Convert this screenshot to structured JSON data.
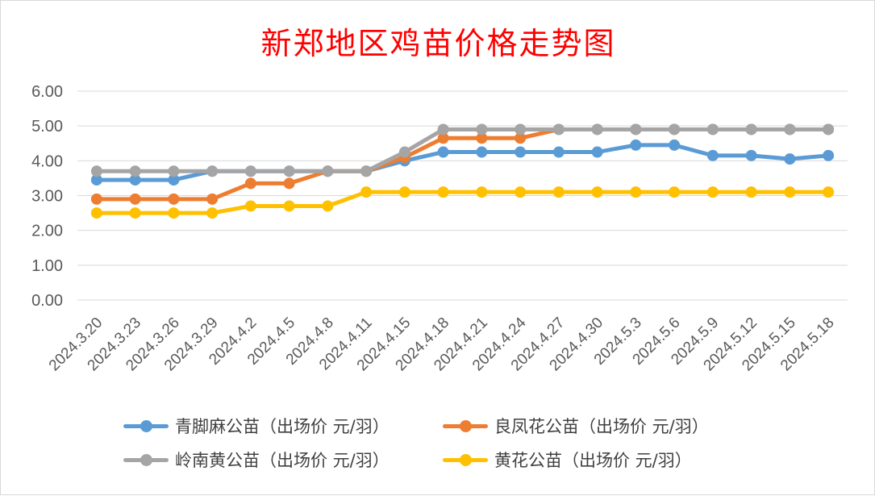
{
  "chart_data": {
    "type": "line",
    "title": "新郑地区鸡苗价格走势图",
    "categories": [
      "2024.3.20",
      "2024.3.23",
      "2024.3.26",
      "2024.3.29",
      "2024.4.2",
      "2024.4.5",
      "2024.4.8",
      "2024.4.11",
      "2024.4.15",
      "2024.4.18",
      "2024.4.21",
      "2024.4.24",
      "2024.4.27",
      "2024.4.30",
      "2024.5.3",
      "2024.5.6",
      "2024.5.9",
      "2024.5.12",
      "2024.5.15",
      "2024.5.18"
    ],
    "ylim": [
      0,
      6
    ],
    "yticks": [
      "0.00",
      "1.00",
      "2.00",
      "3.00",
      "4.00",
      "5.00",
      "6.00"
    ],
    "grid": true,
    "legend_position": "bottom",
    "series": [
      {
        "name": "青脚麻公苗（出场价 元/羽）",
        "color": "#5b9bd5",
        "values": [
          3.45,
          3.45,
          3.45,
          3.7,
          3.7,
          3.7,
          3.7,
          3.7,
          4.0,
          4.25,
          4.25,
          4.25,
          4.25,
          4.25,
          4.45,
          4.45,
          4.15,
          4.15,
          4.05,
          4.15
        ]
      },
      {
        "name": "良凤花公苗（出场价 元/羽）",
        "color": "#ed7d31",
        "values": [
          2.9,
          2.9,
          2.9,
          2.9,
          3.35,
          3.35,
          3.7,
          3.7,
          4.1,
          4.65,
          4.65,
          4.65,
          4.9,
          4.9,
          4.9,
          4.9,
          4.9,
          4.9,
          4.9,
          4.9
        ]
      },
      {
        "name": "岭南黄公苗（出场价 元/羽）",
        "color": "#a5a5a5",
        "values": [
          3.7,
          3.7,
          3.7,
          3.7,
          3.7,
          3.7,
          3.7,
          3.7,
          4.25,
          4.9,
          4.9,
          4.9,
          4.9,
          4.9,
          4.9,
          4.9,
          4.9,
          4.9,
          4.9,
          4.9
        ]
      },
      {
        "name": "黄花公苗（出场价 元/羽）",
        "color": "#ffc000",
        "values": [
          2.5,
          2.5,
          2.5,
          2.5,
          2.7,
          2.7,
          2.7,
          3.1,
          3.1,
          3.1,
          3.1,
          3.1,
          3.1,
          3.1,
          3.1,
          3.1,
          3.1,
          3.1,
          3.1,
          3.1
        ]
      }
    ]
  }
}
